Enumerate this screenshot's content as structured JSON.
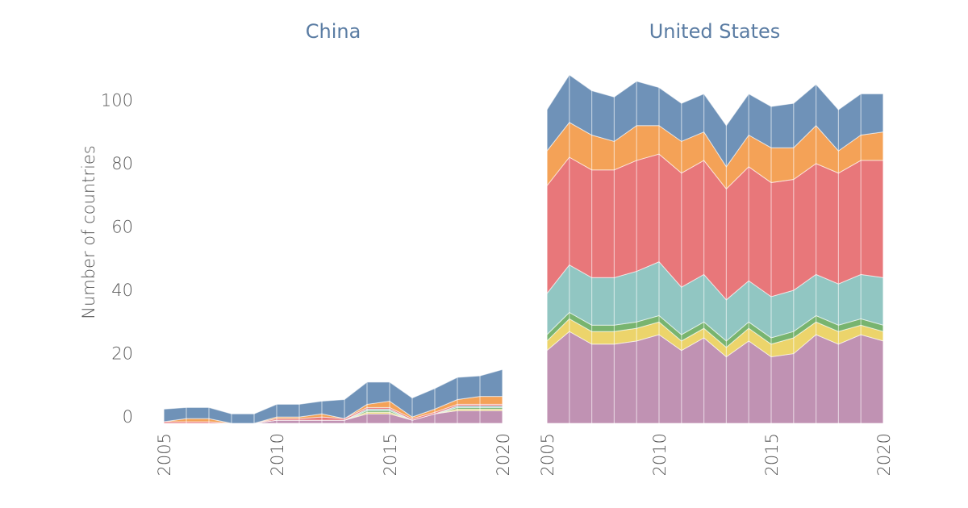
{
  "chart_data": {
    "type": "area",
    "stacked": true,
    "ylabel": "Number of countries",
    "ylim": [
      -2,
      110
    ],
    "yticks": [
      0,
      20,
      40,
      60,
      80,
      100
    ],
    "xticks": [
      "2005",
      "2010",
      "2015",
      "2020"
    ],
    "x": [
      2005,
      2006,
      2007,
      2008,
      2009,
      2010,
      2011,
      2012,
      2013,
      2014,
      2015,
      2016,
      2017,
      2018,
      2019,
      2020
    ],
    "layer_colors": [
      "#c092b3",
      "#ecd46b",
      "#78b46f",
      "#91c6c2",
      "#e8777a",
      "#f4a257",
      "#6f92b8"
    ],
    "panels": [
      {
        "title": "China",
        "series": [
          {
            "values": [
              -2,
              -2,
              -2,
              -2,
              -2,
              -1,
              -1,
              -1,
              -1,
              1,
              1,
              -1,
              1,
              2,
              2,
              2
            ]
          },
          {
            "values": [
              0,
              0,
              0,
              0,
              0,
              0,
              0,
              0,
              0,
              0.5,
              0.5,
              0,
              0,
              0.5,
              0.5,
              0.5
            ]
          },
          {
            "values": [
              0,
              0,
              0,
              0,
              0,
              0,
              0,
              0,
              0,
              0.5,
              0.5,
              0,
              0,
              0.5,
              0.5,
              0.5
            ]
          },
          {
            "values": [
              0,
              0,
              0,
              0,
              0,
              0,
              0,
              0,
              0,
              0.5,
              0.5,
              0,
              0,
              0.5,
              0.5,
              0.5
            ]
          },
          {
            "values": [
              0.5,
              0.5,
              0.5,
              0,
              0,
              0.5,
              0.5,
              1,
              0.5,
              0.5,
              0.5,
              0.5,
              0.5,
              0.5,
              0.5,
              0.5
            ]
          },
          {
            "values": [
              0,
              1,
              1,
              0,
              0,
              0.5,
              0.5,
              1,
              0,
              1,
              2,
              0.5,
              1,
              1.5,
              2.5,
              2.5
            ]
          },
          {
            "values": [
              4,
              3.5,
              3.5,
              3,
              3,
              4,
              4,
              4,
              6,
              7,
              6,
              6,
              6.5,
              7,
              6.5,
              8.5
            ]
          }
        ]
      },
      {
        "title": "United States",
        "series": [
          {
            "values": [
              21,
              27,
              23,
              23,
              24,
              26,
              21,
              25,
              19,
              24,
              19,
              20,
              26,
              23,
              26,
              24
            ]
          },
          {
            "values": [
              3,
              4,
              4,
              4,
              4,
              4,
              3,
              3,
              3,
              4,
              4,
              5,
              4,
              4,
              3,
              3
            ]
          },
          {
            "values": [
              2,
              2,
              2,
              2,
              2,
              2,
              2,
              2,
              2,
              2,
              2,
              2,
              2,
              2,
              2,
              2
            ]
          },
          {
            "values": [
              13,
              15,
              15,
              15,
              16,
              17,
              15,
              15,
              13,
              13,
              13,
              13,
              13,
              13,
              14,
              15
            ]
          },
          {
            "values": [
              34,
              34,
              34,
              34,
              35,
              34,
              36,
              36,
              35,
              36,
              36,
              35,
              35,
              35,
              36,
              37
            ]
          },
          {
            "values": [
              11,
              11,
              11,
              9,
              11,
              9,
              10,
              9,
              7,
              10,
              11,
              10,
              12,
              7,
              8,
              9
            ]
          },
          {
            "values": [
              13,
              15,
              14,
              14,
              14,
              12,
              12,
              12,
              13,
              13,
              13,
              14,
              13,
              13,
              13,
              12
            ]
          }
        ]
      }
    ]
  }
}
